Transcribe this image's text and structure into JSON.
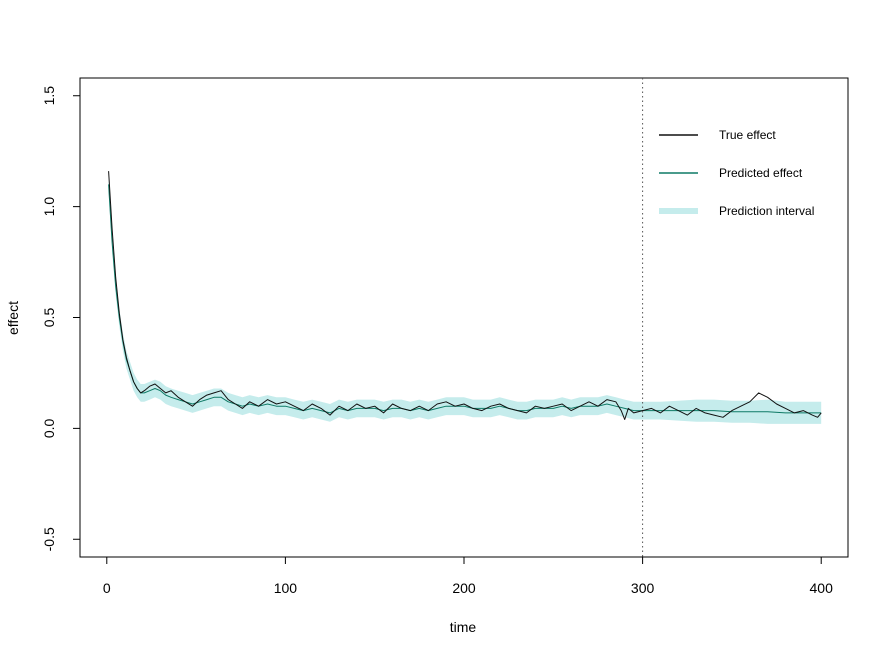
{
  "chart_data": {
    "type": "line",
    "title": "",
    "xlabel": "time",
    "ylabel": "effect",
    "xlim": [
      -15,
      415
    ],
    "ylim": [
      -0.58,
      1.58
    ],
    "xticks": [
      0,
      100,
      200,
      300,
      400
    ],
    "yticks": [
      -0.5,
      0.0,
      0.5,
      1.0,
      1.5
    ],
    "xtick_labels": [
      "0",
      "100",
      "200",
      "300",
      "400"
    ],
    "ytick_labels": [
      "-0.5",
      "0.0",
      "0.5",
      "1.0",
      "1.5"
    ],
    "grid": false,
    "legend_position": "top-right",
    "vline": {
      "x": 300,
      "style": "dotted",
      "color": "#555555"
    },
    "series": [
      {
        "name": "True effect",
        "color": "#111111",
        "x": [
          1,
          3,
          5,
          7,
          9,
          11,
          13,
          15,
          17,
          19,
          21,
          24,
          27,
          30,
          33,
          36,
          40,
          44,
          48,
          52,
          56,
          60,
          64,
          68,
          72,
          76,
          80,
          85,
          90,
          95,
          100,
          105,
          110,
          115,
          120,
          125,
          130,
          135,
          140,
          145,
          150,
          155,
          160,
          165,
          170,
          175,
          180,
          185,
          190,
          195,
          200,
          205,
          210,
          215,
          220,
          225,
          230,
          235,
          240,
          245,
          250,
          255,
          260,
          265,
          270,
          275,
          280,
          285,
          288,
          290,
          292,
          295,
          300,
          305,
          310,
          315,
          320,
          325,
          330,
          335,
          340,
          345,
          350,
          355,
          360,
          365,
          370,
          375,
          380,
          385,
          390,
          395,
          398,
          400
        ],
        "values": [
          1.16,
          0.9,
          0.68,
          0.52,
          0.4,
          0.32,
          0.26,
          0.21,
          0.18,
          0.16,
          0.17,
          0.19,
          0.2,
          0.18,
          0.16,
          0.17,
          0.14,
          0.12,
          0.1,
          0.13,
          0.15,
          0.16,
          0.17,
          0.13,
          0.11,
          0.09,
          0.12,
          0.1,
          0.13,
          0.11,
          0.12,
          0.1,
          0.08,
          0.11,
          0.09,
          0.06,
          0.1,
          0.08,
          0.11,
          0.09,
          0.1,
          0.07,
          0.11,
          0.09,
          0.08,
          0.1,
          0.08,
          0.11,
          0.12,
          0.1,
          0.11,
          0.09,
          0.08,
          0.1,
          0.11,
          0.09,
          0.08,
          0.07,
          0.1,
          0.09,
          0.1,
          0.11,
          0.08,
          0.1,
          0.12,
          0.1,
          0.13,
          0.12,
          0.08,
          0.04,
          0.09,
          0.07,
          0.08,
          0.09,
          0.07,
          0.1,
          0.08,
          0.06,
          0.09,
          0.07,
          0.06,
          0.05,
          0.08,
          0.1,
          0.12,
          0.16,
          0.14,
          0.11,
          0.09,
          0.07,
          0.08,
          0.06,
          0.05,
          0.07
        ]
      },
      {
        "name": "Predicted effect",
        "color": "#0f7a66",
        "x": [
          1,
          3,
          5,
          7,
          9,
          11,
          13,
          15,
          17,
          19,
          21,
          24,
          27,
          30,
          33,
          36,
          40,
          44,
          48,
          52,
          56,
          60,
          64,
          68,
          72,
          76,
          80,
          85,
          90,
          95,
          100,
          105,
          110,
          115,
          120,
          125,
          130,
          135,
          140,
          145,
          150,
          155,
          160,
          165,
          170,
          175,
          180,
          185,
          190,
          195,
          200,
          205,
          210,
          215,
          220,
          225,
          230,
          235,
          240,
          245,
          250,
          255,
          260,
          265,
          270,
          275,
          280,
          285,
          290,
          295,
          300,
          310,
          320,
          330,
          340,
          350,
          360,
          370,
          380,
          390,
          400
        ],
        "values": [
          1.1,
          0.84,
          0.64,
          0.5,
          0.39,
          0.31,
          0.26,
          0.21,
          0.18,
          0.16,
          0.16,
          0.17,
          0.18,
          0.17,
          0.15,
          0.14,
          0.13,
          0.12,
          0.11,
          0.12,
          0.13,
          0.14,
          0.14,
          0.12,
          0.11,
          0.1,
          0.11,
          0.1,
          0.11,
          0.1,
          0.1,
          0.09,
          0.08,
          0.09,
          0.08,
          0.07,
          0.09,
          0.08,
          0.09,
          0.09,
          0.09,
          0.08,
          0.09,
          0.09,
          0.08,
          0.09,
          0.08,
          0.09,
          0.1,
          0.1,
          0.1,
          0.09,
          0.09,
          0.09,
          0.1,
          0.09,
          0.08,
          0.08,
          0.09,
          0.09,
          0.09,
          0.1,
          0.09,
          0.1,
          0.1,
          0.1,
          0.11,
          0.1,
          0.09,
          0.08,
          0.08,
          0.08,
          0.08,
          0.08,
          0.08,
          0.075,
          0.075,
          0.075,
          0.07,
          0.07,
          0.07
        ]
      },
      {
        "name": "Prediction interval",
        "color": "#c5ecec",
        "x": [
          1,
          3,
          5,
          7,
          9,
          11,
          13,
          15,
          17,
          19,
          21,
          24,
          27,
          30,
          33,
          36,
          40,
          44,
          48,
          52,
          56,
          60,
          64,
          68,
          72,
          76,
          80,
          85,
          90,
          95,
          100,
          105,
          110,
          115,
          120,
          125,
          130,
          135,
          140,
          145,
          150,
          155,
          160,
          165,
          170,
          175,
          180,
          185,
          190,
          195,
          200,
          205,
          210,
          215,
          220,
          225,
          230,
          235,
          240,
          245,
          250,
          255,
          260,
          265,
          270,
          275,
          280,
          285,
          290,
          295,
          300,
          310,
          320,
          330,
          340,
          350,
          360,
          370,
          380,
          390,
          400
        ],
        "lower": [
          1.06,
          0.8,
          0.6,
          0.46,
          0.35,
          0.27,
          0.22,
          0.17,
          0.14,
          0.12,
          0.12,
          0.13,
          0.14,
          0.13,
          0.11,
          0.1,
          0.09,
          0.08,
          0.07,
          0.08,
          0.09,
          0.1,
          0.1,
          0.08,
          0.07,
          0.06,
          0.07,
          0.06,
          0.07,
          0.06,
          0.06,
          0.05,
          0.04,
          0.05,
          0.04,
          0.03,
          0.05,
          0.04,
          0.05,
          0.05,
          0.05,
          0.04,
          0.05,
          0.05,
          0.04,
          0.05,
          0.04,
          0.05,
          0.06,
          0.06,
          0.06,
          0.05,
          0.05,
          0.05,
          0.06,
          0.05,
          0.04,
          0.04,
          0.05,
          0.05,
          0.05,
          0.06,
          0.05,
          0.06,
          0.06,
          0.06,
          0.07,
          0.06,
          0.05,
          0.04,
          0.04,
          0.04,
          0.035,
          0.03,
          0.03,
          0.025,
          0.025,
          0.02,
          0.02,
          0.02,
          0.02
        ],
        "upper": [
          1.14,
          0.88,
          0.68,
          0.54,
          0.43,
          0.35,
          0.3,
          0.25,
          0.22,
          0.2,
          0.2,
          0.21,
          0.22,
          0.21,
          0.19,
          0.18,
          0.17,
          0.16,
          0.15,
          0.16,
          0.17,
          0.18,
          0.18,
          0.16,
          0.15,
          0.14,
          0.15,
          0.14,
          0.15,
          0.14,
          0.14,
          0.13,
          0.12,
          0.13,
          0.12,
          0.11,
          0.13,
          0.12,
          0.13,
          0.13,
          0.13,
          0.12,
          0.13,
          0.13,
          0.12,
          0.13,
          0.12,
          0.13,
          0.14,
          0.14,
          0.14,
          0.13,
          0.13,
          0.13,
          0.14,
          0.13,
          0.12,
          0.12,
          0.13,
          0.13,
          0.13,
          0.14,
          0.13,
          0.14,
          0.14,
          0.14,
          0.15,
          0.14,
          0.13,
          0.12,
          0.12,
          0.12,
          0.125,
          0.13,
          0.13,
          0.125,
          0.125,
          0.13,
          0.12,
          0.12,
          0.12
        ]
      }
    ],
    "legend": [
      {
        "label": "True effect",
        "color": "#111111",
        "kind": "line"
      },
      {
        "label": "Predicted effect",
        "color": "#0f7a66",
        "kind": "line"
      },
      {
        "label": "Prediction interval",
        "color": "#c5ecec",
        "kind": "band"
      }
    ]
  }
}
